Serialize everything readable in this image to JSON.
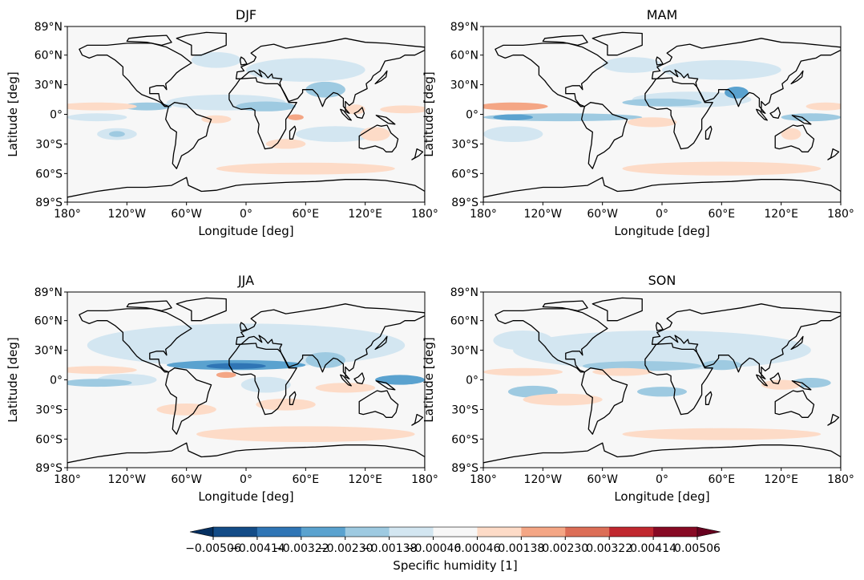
{
  "chart_data": {
    "type": "heatmap",
    "subtype": "filled-contour-map",
    "projection": "plate-carree",
    "colormap": "RdBu_r",
    "colorbar": {
      "label": "Specific humidity [1]",
      "extend": "both",
      "ticks": [
        "−0.00506",
        "−0.00414",
        "−0.00322",
        "−0.00230",
        "−0.00138",
        "−0.00046",
        "0.00046",
        "0.00138",
        "0.00230",
        "0.00322",
        "0.00414",
        "0.00506"
      ],
      "levels": [
        -0.00506,
        -0.00414,
        -0.00322,
        -0.0023,
        -0.00138,
        -0.00046,
        0.00046,
        0.00138,
        0.0023,
        0.00322,
        0.00414,
        0.00506
      ],
      "colors": [
        "#134c87",
        "#2f75b5",
        "#5aa2cf",
        "#9ecae1",
        "#d3e6f1",
        "#f7f7f7",
        "#fddbc7",
        "#f4a685",
        "#dc6e57",
        "#c0282f",
        "#870a24"
      ],
      "under_color": "#053061",
      "over_color": "#67001f"
    },
    "xlabel": "Longitude [deg]",
    "ylabel": "Latitude [deg]",
    "xlim": [
      -180,
      180
    ],
    "ylim": [
      -89,
      89
    ],
    "xticks": [
      {
        "value": -180,
        "label": "180°"
      },
      {
        "value": -120,
        "label": "120°W"
      },
      {
        "value": -60,
        "label": "60°W"
      },
      {
        "value": 0,
        "label": "0°"
      },
      {
        "value": 60,
        "label": "60°E"
      },
      {
        "value": 120,
        "label": "120°E"
      },
      {
        "value": 180,
        "label": "180°"
      }
    ],
    "yticks": [
      {
        "value": 89,
        "label": "89°N"
      },
      {
        "value": 60,
        "label": "60°N"
      },
      {
        "value": 30,
        "label": "30°N"
      },
      {
        "value": 0,
        "label": "0°"
      },
      {
        "value": -30,
        "label": "30°S"
      },
      {
        "value": -60,
        "label": "60°S"
      },
      {
        "value": -89,
        "label": "89°S"
      }
    ],
    "panels": [
      {
        "title": "DJF",
        "anomaly_regions": [
          [
            -20,
            12,
            60,
            8,
            -1
          ],
          [
            20,
            8,
            30,
            5,
            -2
          ],
          [
            -100,
            8,
            25,
            4,
            -2
          ],
          [
            -150,
            -3,
            30,
            4,
            -1
          ],
          [
            -130,
            -20,
            20,
            6,
            -1
          ],
          [
            -130,
            -20,
            8,
            3,
            -2
          ],
          [
            90,
            -20,
            40,
            8,
            -1
          ],
          [
            60,
            45,
            60,
            12,
            -1
          ],
          [
            -30,
            55,
            25,
            8,
            -1
          ],
          [
            80,
            25,
            20,
            8,
            -2
          ],
          [
            -150,
            8,
            40,
            4,
            1
          ],
          [
            -30,
            -5,
            15,
            4,
            1
          ],
          [
            50,
            -3,
            8,
            3,
            2
          ],
          [
            130,
            -20,
            15,
            7,
            1
          ],
          [
            40,
            -30,
            20,
            5,
            1
          ],
          [
            60,
            -55,
            90,
            6,
            1
          ],
          [
            110,
            5,
            10,
            5,
            1
          ],
          [
            160,
            5,
            25,
            4,
            1
          ]
        ]
      },
      {
        "title": "MAM",
        "anomaly_regions": [
          [
            30,
            15,
            60,
            8,
            -1
          ],
          [
            -150,
            -20,
            30,
            8,
            -1
          ],
          [
            60,
            45,
            60,
            10,
            -1
          ],
          [
            -30,
            50,
            30,
            8,
            -1
          ],
          [
            -100,
            -3,
            80,
            4,
            -2
          ],
          [
            -150,
            -3,
            20,
            3,
            -3
          ],
          [
            0,
            12,
            40,
            4,
            -2
          ],
          [
            75,
            22,
            12,
            6,
            -3
          ],
          [
            150,
            -3,
            30,
            4,
            -2
          ],
          [
            -150,
            8,
            35,
            4,
            2
          ],
          [
            -10,
            -8,
            25,
            5,
            1
          ],
          [
            165,
            8,
            20,
            4,
            1
          ],
          [
            60,
            -55,
            100,
            7,
            1
          ],
          [
            130,
            -20,
            10,
            6,
            1
          ]
        ]
      },
      {
        "title": "JJA",
        "anomaly_regions": [
          [
            0,
            35,
            160,
            22,
            -1
          ],
          [
            -120,
            0,
            30,
            6,
            -1
          ],
          [
            20,
            -5,
            25,
            8,
            -1
          ],
          [
            -10,
            15,
            70,
            5,
            -3
          ],
          [
            -10,
            14,
            30,
            3,
            -4
          ],
          [
            80,
            20,
            20,
            8,
            -2
          ],
          [
            155,
            0,
            25,
            5,
            -3
          ],
          [
            -150,
            -3,
            35,
            4,
            -2
          ],
          [
            -150,
            10,
            40,
            4,
            1
          ],
          [
            -20,
            5,
            10,
            3,
            2
          ],
          [
            100,
            -8,
            30,
            5,
            1
          ],
          [
            -60,
            -30,
            30,
            6,
            1
          ],
          [
            60,
            -55,
            110,
            8,
            1
          ],
          [
            40,
            -25,
            30,
            6,
            1
          ]
        ]
      },
      {
        "title": "SON",
        "anomaly_regions": [
          [
            0,
            30,
            150,
            20,
            -1
          ],
          [
            -140,
            40,
            30,
            10,
            -1
          ],
          [
            -20,
            14,
            60,
            5,
            -2
          ],
          [
            0,
            -12,
            25,
            5,
            -2
          ],
          [
            60,
            15,
            20,
            5,
            -2
          ],
          [
            150,
            -3,
            20,
            5,
            -2
          ],
          [
            -130,
            -12,
            25,
            6,
            -2
          ],
          [
            -140,
            8,
            40,
            4,
            1
          ],
          [
            -40,
            8,
            30,
            4,
            1
          ],
          [
            -100,
            -20,
            40,
            6,
            1
          ],
          [
            60,
            -55,
            100,
            6,
            1
          ],
          [
            120,
            -5,
            20,
            5,
            1
          ]
        ]
      }
    ]
  }
}
